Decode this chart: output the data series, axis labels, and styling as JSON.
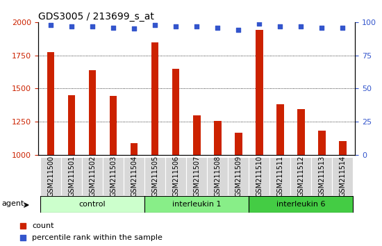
{
  "title": "GDS3005 / 213699_s_at",
  "samples": [
    "GSM211500",
    "GSM211501",
    "GSM211502",
    "GSM211503",
    "GSM211504",
    "GSM211505",
    "GSM211506",
    "GSM211507",
    "GSM211508",
    "GSM211509",
    "GSM211510",
    "GSM211511",
    "GSM211512",
    "GSM211513",
    "GSM211514"
  ],
  "counts": [
    1775,
    1450,
    1640,
    1445,
    1090,
    1850,
    1650,
    1300,
    1255,
    1165,
    1940,
    1380,
    1345,
    1185,
    1105
  ],
  "percentile_ranks": [
    98,
    97,
    97,
    96,
    95,
    98,
    97,
    97,
    96,
    94,
    99,
    97,
    97,
    96,
    96
  ],
  "bar_color": "#cc2200",
  "dot_color": "#3355cc",
  "ylim_left": [
    1000,
    2000
  ],
  "ylim_right": [
    0,
    100
  ],
  "yticks_left": [
    1000,
    1250,
    1500,
    1750,
    2000
  ],
  "yticks_right": [
    0,
    25,
    50,
    75,
    100
  ],
  "groups": [
    {
      "label": "control",
      "start": 0,
      "end": 5,
      "color": "#ccffcc"
    },
    {
      "label": "interleukin 1",
      "start": 5,
      "end": 10,
      "color": "#88ee88"
    },
    {
      "label": "interleukin 6",
      "start": 10,
      "end": 15,
      "color": "#44cc44"
    }
  ],
  "legend_items": [
    {
      "label": "count",
      "color": "#cc2200"
    },
    {
      "label": "percentile rank within the sample",
      "color": "#3355cc"
    }
  ],
  "xlabel_agent": "agent",
  "background_color": "#ffffff",
  "plot_bg": "#ffffff",
  "title_fontsize": 10,
  "tick_label_fontsize": 7,
  "group_label_fontsize": 8,
  "legend_fontsize": 8,
  "bar_width": 0.35
}
